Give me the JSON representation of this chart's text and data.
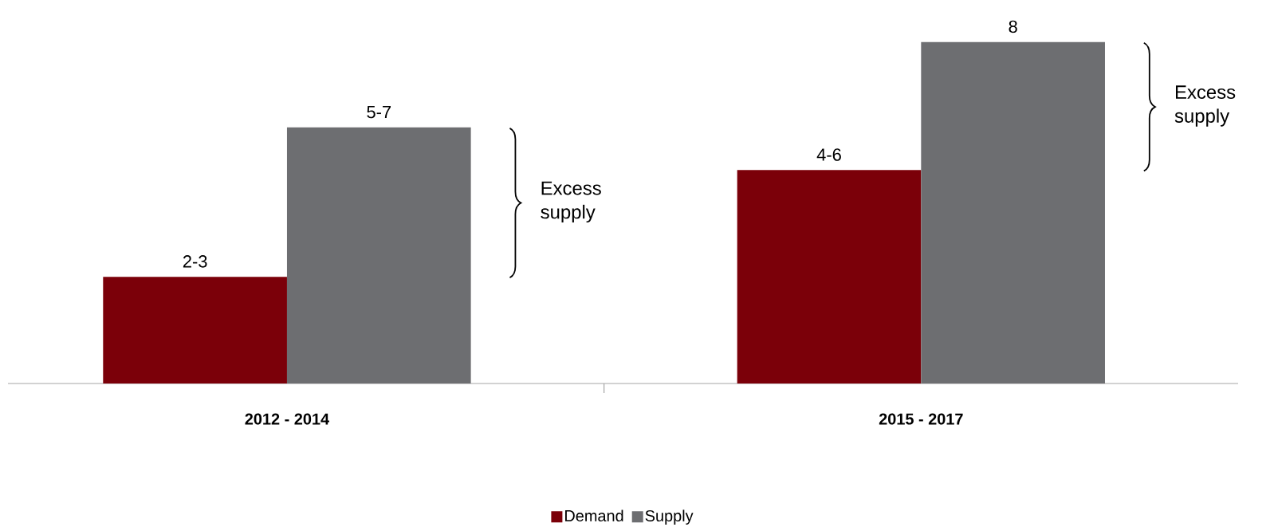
{
  "chart_data": {
    "type": "bar",
    "categories": [
      "2012 - 2014",
      "2015 - 2017"
    ],
    "series": [
      {
        "name": "Demand",
        "color": "#7b0009",
        "values": [
          2.5,
          5
        ],
        "value_labels": [
          "2-3",
          "4-6"
        ]
      },
      {
        "name": "Supply",
        "color": "#6d6e71",
        "values": [
          6,
          8
        ],
        "value_labels": [
          "5-7",
          "8"
        ]
      }
    ],
    "annotations": [
      "Excess supply",
      "Excess supply"
    ],
    "legend": "bottom"
  }
}
